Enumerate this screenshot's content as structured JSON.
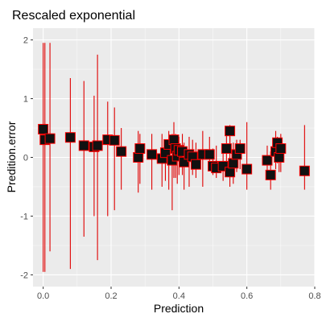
{
  "chart_data": {
    "type": "scatter",
    "title": "Rescaled exponential",
    "xlabel": "Prediction",
    "ylabel": "Predition.error",
    "xlim": [
      -0.03,
      0.8
    ],
    "ylim": [
      -2.2,
      2.2
    ],
    "x_ticks": [
      0.0,
      0.2,
      0.4,
      0.6,
      0.8
    ],
    "x_tick_labels": [
      "0.0",
      "0.2",
      "0.4",
      "0.6",
      "0.8"
    ],
    "y_ticks": [
      -2,
      -1,
      0,
      1,
      2
    ],
    "y_tick_labels": [
      "-2",
      "-1",
      "0",
      "1",
      "2"
    ],
    "grid": true,
    "background": "#ebebeb",
    "point_fill": "#111111",
    "point_outline": "#ff0000",
    "error_bar_color": "#e00000",
    "points": [
      {
        "x": 0.0,
        "y": 0.48,
        "lo": -1.95,
        "hi": 1.95
      },
      {
        "x": 0.005,
        "y": 0.3,
        "lo": -1.95,
        "hi": 1.95
      },
      {
        "x": 0.02,
        "y": 0.32,
        "lo": -1.6,
        "hi": 1.95
      },
      {
        "x": 0.08,
        "y": 0.34,
        "lo": -1.9,
        "hi": 1.35
      },
      {
        "x": 0.12,
        "y": 0.2,
        "lo": -1.35,
        "hi": 1.3
      },
      {
        "x": 0.15,
        "y": 0.18,
        "lo": -1.0,
        "hi": 1.05
      },
      {
        "x": 0.16,
        "y": 0.2,
        "lo": -1.75,
        "hi": 1.75
      },
      {
        "x": 0.19,
        "y": 0.3,
        "lo": -1.0,
        "hi": 0.95
      },
      {
        "x": 0.21,
        "y": 0.29,
        "lo": -0.9,
        "hi": 0.85
      },
      {
        "x": 0.23,
        "y": 0.1,
        "lo": -0.55,
        "hi": 0.5
      },
      {
        "x": 0.28,
        "y": 0.0,
        "lo": -0.6,
        "hi": 0.45
      },
      {
        "x": 0.285,
        "y": 0.15,
        "lo": -0.45,
        "hi": 0.4
      },
      {
        "x": 0.32,
        "y": 0.05,
        "lo": -0.55,
        "hi": 0.4
      },
      {
        "x": 0.35,
        "y": -0.02,
        "lo": -0.5,
        "hi": 0.4
      },
      {
        "x": 0.36,
        "y": 0.08,
        "lo": -0.4,
        "hi": 0.3
      },
      {
        "x": 0.37,
        "y": 0.22,
        "lo": -0.55,
        "hi": 0.45
      },
      {
        "x": 0.38,
        "y": -0.05,
        "lo": -0.9,
        "hi": 0.4
      },
      {
        "x": 0.385,
        "y": 0.3,
        "lo": -0.35,
        "hi": 0.6
      },
      {
        "x": 0.39,
        "y": 0.15,
        "lo": -0.35,
        "hi": 0.4
      },
      {
        "x": 0.395,
        "y": 0.02,
        "lo": -0.45,
        "hi": 0.35
      },
      {
        "x": 0.4,
        "y": 0.12,
        "lo": -0.3,
        "hi": 0.35
      },
      {
        "x": 0.41,
        "y": 0.1,
        "lo": -0.3,
        "hi": 0.4
      },
      {
        "x": 0.415,
        "y": -0.08,
        "lo": -0.55,
        "hi": 0.25
      },
      {
        "x": 0.43,
        "y": 0.05,
        "lo": -0.5,
        "hi": 0.35
      },
      {
        "x": 0.44,
        "y": 0.01,
        "lo": -0.3,
        "hi": 0.3
      },
      {
        "x": 0.45,
        "y": -0.12,
        "lo": -0.35,
        "hi": 0.25
      },
      {
        "x": 0.47,
        "y": 0.05,
        "lo": -0.5,
        "hi": 0.45
      },
      {
        "x": 0.49,
        "y": 0.05,
        "lo": -0.15,
        "hi": 0.35
      },
      {
        "x": 0.5,
        "y": -0.15,
        "lo": -0.3,
        "hi": 0.15
      },
      {
        "x": 0.51,
        "y": -0.18,
        "lo": -0.35,
        "hi": 0.2
      },
      {
        "x": 0.53,
        "y": -0.15,
        "lo": -0.4,
        "hi": 0.15
      },
      {
        "x": 0.54,
        "y": 0.15,
        "lo": -0.3,
        "hi": 0.4
      },
      {
        "x": 0.55,
        "y": 0.45,
        "lo": 0.1,
        "hi": 0.55
      },
      {
        "x": 0.55,
        "y": -0.25,
        "lo": -0.5,
        "hi": 0.35
      },
      {
        "x": 0.56,
        "y": -0.1,
        "lo": -0.45,
        "hi": 0.25
      },
      {
        "x": 0.57,
        "y": 0.05,
        "lo": -0.25,
        "hi": 0.3
      },
      {
        "x": 0.58,
        "y": 0.15,
        "lo": -0.2,
        "hi": 0.3
      },
      {
        "x": 0.6,
        "y": -0.2,
        "lo": -0.55,
        "hi": 0.6
      },
      {
        "x": 0.66,
        "y": -0.05,
        "lo": -0.35,
        "hi": 0.2
      },
      {
        "x": 0.67,
        "y": -0.3,
        "lo": -0.55,
        "hi": 0.1
      },
      {
        "x": 0.685,
        "y": 0.1,
        "lo": -0.2,
        "hi": 0.45
      },
      {
        "x": 0.69,
        "y": 0.25,
        "lo": -0.1,
        "hi": 0.35
      },
      {
        "x": 0.695,
        "y": 0.0,
        "lo": -0.25,
        "hi": 0.25
      },
      {
        "x": 0.7,
        "y": 0.15,
        "lo": -0.25,
        "hi": 0.4
      },
      {
        "x": 0.77,
        "y": -0.23,
        "lo": -0.55,
        "hi": 0.55
      }
    ]
  }
}
